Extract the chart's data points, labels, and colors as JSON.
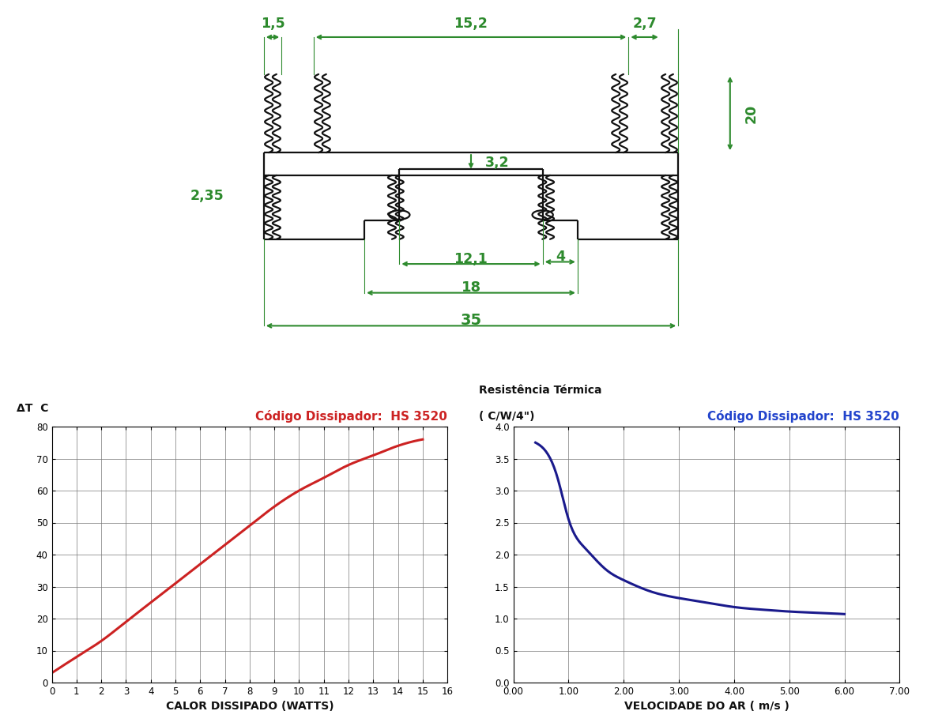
{
  "dim_color": "#2d8a2d",
  "drawing_color": "#111111",
  "bg_color": "#ffffff",
  "chart1": {
    "title": "Código Dissipador:  HS 3520",
    "title_color": "#cc2222",
    "xlabel": "CALOR DISSIPADO (WATTS)",
    "ylabel": "ΔT  C",
    "xlim": [
      0,
      16
    ],
    "ylim": [
      0,
      80
    ],
    "xticks": [
      0,
      1,
      2,
      3,
      4,
      5,
      6,
      7,
      8,
      9,
      10,
      11,
      12,
      13,
      14,
      15,
      16
    ],
    "yticks": [
      0,
      10,
      20,
      30,
      40,
      50,
      60,
      70,
      80
    ],
    "x": [
      0,
      1,
      2,
      3,
      4,
      5,
      6,
      7,
      8,
      9,
      10,
      11,
      12,
      13,
      14,
      15
    ],
    "y": [
      3,
      8,
      13,
      19,
      25,
      31,
      37,
      43,
      49,
      55,
      60,
      64,
      68,
      71,
      74,
      76
    ],
    "line_color": "#cc2222",
    "line_width": 2.2
  },
  "chart2": {
    "title": "Código Dissipador:  HS 3520",
    "title_color": "#2244cc",
    "ylabel1": "Resistência Térmica",
    "ylabel2": "( C/W/4\")",
    "xlabel": "VELOCIDADE DO AR ( m/s )",
    "xlim": [
      0,
      7
    ],
    "ylim": [
      0,
      4
    ],
    "xticks": [
      0.0,
      1.0,
      2.0,
      3.0,
      4.0,
      5.0,
      6.0,
      7.0
    ],
    "yticks": [
      0,
      0.5,
      1.0,
      1.5,
      2.0,
      2.5,
      3.0,
      3.5,
      4.0
    ],
    "x": [
      0.4,
      0.6,
      0.8,
      1.0,
      1.3,
      1.7,
      2.0,
      2.5,
      3.0,
      3.5,
      4.0,
      4.5,
      5.0,
      5.5,
      6.0
    ],
    "y": [
      3.75,
      3.6,
      3.2,
      2.55,
      2.1,
      1.75,
      1.6,
      1.42,
      1.32,
      1.25,
      1.18,
      1.14,
      1.11,
      1.09,
      1.07
    ],
    "line_color": "#1a1a8c",
    "line_width": 2.2
  },
  "dims": {
    "1_5": "1,5",
    "15_2": "15,2",
    "2_7": "2,7",
    "3_2": "3,2",
    "20": "20",
    "2_35": "2,35",
    "12_1": "12,1",
    "4": "4",
    "18": "18",
    "35": "35"
  }
}
